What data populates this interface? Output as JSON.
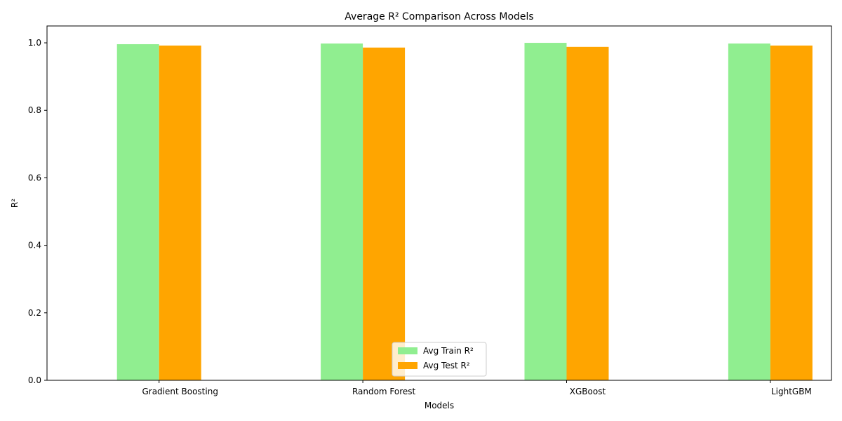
{
  "chart_data": {
    "type": "bar",
    "title": "Average R² Comparison Across Models",
    "xlabel": "Models",
    "ylabel": "R²",
    "categories": [
      "Gradient Boosting",
      "Random Forest",
      "XGBoost",
      "LightGBM"
    ],
    "series": [
      {
        "name": "Avg Train R²",
        "color": "#90ee90",
        "values": [
          0.996,
          0.998,
          1.0,
          0.998
        ]
      },
      {
        "name": "Avg Test R²",
        "color": "#ffa500",
        "values": [
          0.992,
          0.986,
          0.988,
          0.992
        ]
      }
    ],
    "ylim": [
      0,
      1.05
    ],
    "yticks": [
      0.0,
      0.2,
      0.4,
      0.6,
      0.8,
      1.0
    ],
    "grid": false,
    "legend_position": "lower-center"
  }
}
